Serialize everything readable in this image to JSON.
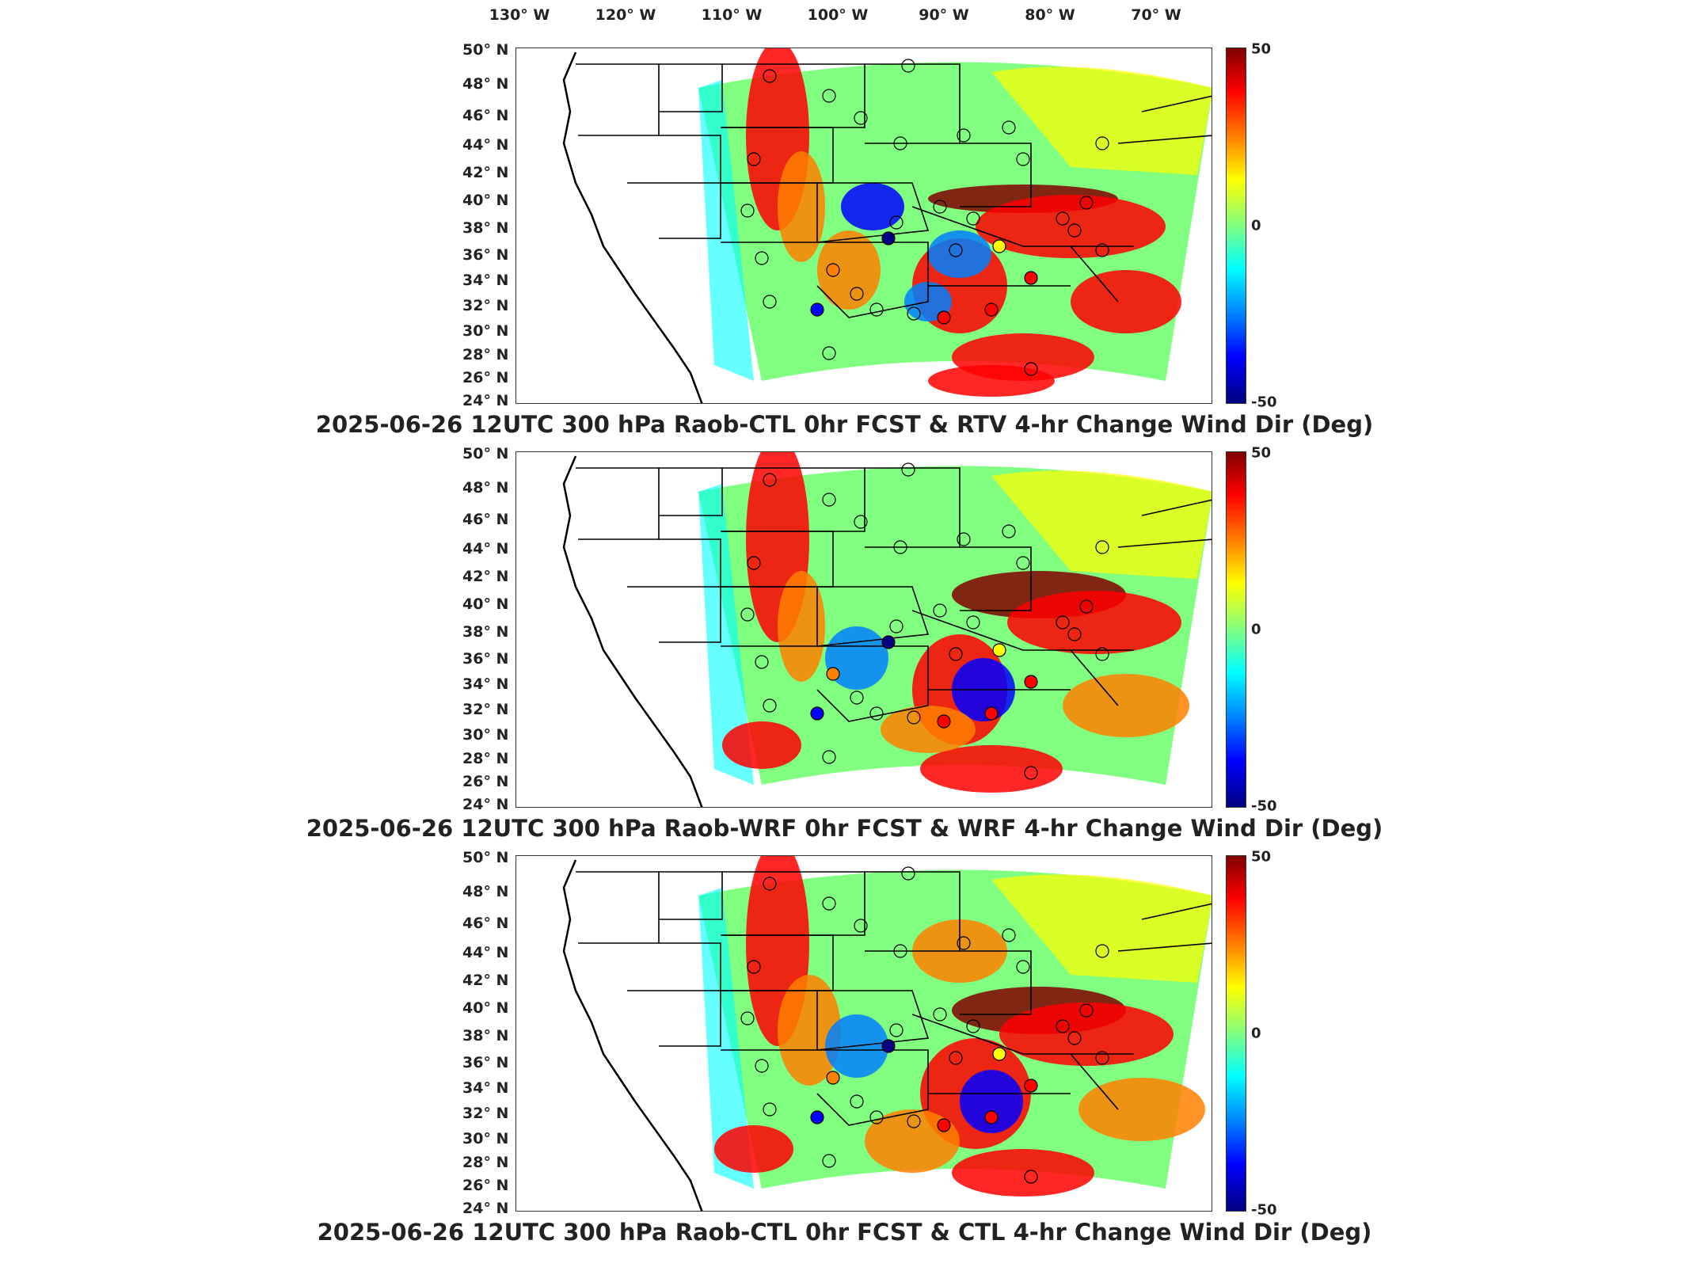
{
  "lon_labels": [
    "130° W",
    "120° W",
    "110° W",
    "100° W",
    "90° W",
    "80° W",
    "70° W"
  ],
  "lat_labels": [
    "50° N",
    "48° N",
    "46° N",
    "44° N",
    "42° N",
    "40° N",
    "38° N",
    "36° N",
    "34° N",
    "32° N",
    "30° N",
    "28° N",
    "26° N",
    "24° N"
  ],
  "colorbar": {
    "max": "50",
    "mid": "0",
    "min": "-50",
    "colors": [
      "#800000",
      "#ff0000",
      "#ff8000",
      "#ffff00",
      "#80ff80",
      "#00ffff",
      "#0080ff",
      "#0000ff",
      "#000080"
    ]
  },
  "panels": [
    {
      "title": "2025-06-26 12UTC 300 hPa Raob-CTL 0hr FCST & RTV 4-hr Change Wind Dir (Deg)"
    },
    {
      "title": "2025-06-26 12UTC 300 hPa Raob-WRF 0hr FCST & WRF 4-hr Change Wind Dir (Deg)"
    },
    {
      "title": "2025-06-26 12UTC 300 hPa Raob-CTL 0hr FCST & CTL 4-hr Change Wind Dir (Deg)"
    }
  ]
}
